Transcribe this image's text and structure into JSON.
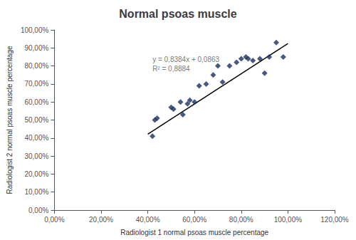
{
  "chart_data": {
    "type": "scatter",
    "title": "Normal psoas muscle",
    "xlabel": "Radiologist 1 normal psoas muscle percentage",
    "ylabel": "Radiologist 2 normal psoas muscle percentage",
    "series": [
      {
        "type": "scatter",
        "color": "#1a3060",
        "marker": "diamond",
        "x": [
          0.42,
          0.43,
          0.44,
          0.5,
          0.51,
          0.54,
          0.55,
          0.57,
          0.58,
          0.6,
          0.62,
          0.65,
          0.68,
          0.7,
          0.72,
          0.75,
          0.78,
          0.8,
          0.82,
          0.83,
          0.85,
          0.88,
          0.9,
          0.92,
          0.95,
          0.98
        ],
        "values": [
          0.41,
          0.5,
          0.51,
          0.57,
          0.56,
          0.6,
          0.53,
          0.59,
          0.61,
          0.6,
          0.69,
          0.7,
          0.75,
          0.8,
          0.71,
          0.8,
          0.82,
          0.84,
          0.85,
          0.84,
          0.83,
          0.84,
          0.76,
          0.85,
          0.93,
          0.85
        ]
      },
      {
        "type": "line",
        "color": "#000000",
        "x": [
          0.4,
          1.0
        ],
        "values": [
          0.42166,
          0.9247
        ]
      }
    ],
    "annotations": [
      {
        "text": "y = 0,8384x + 0,0863\nR² = 0,8884",
        "x": 0.42,
        "y": 0.86
      }
    ],
    "xlim": [
      0.0,
      1.2
    ],
    "ylim": [
      0.0,
      1.0
    ],
    "xticks": [
      {
        "value": 0.0,
        "label": "0,00%"
      },
      {
        "value": 0.2,
        "label": "20,00%"
      },
      {
        "value": 0.4,
        "label": "40,00%"
      },
      {
        "value": 0.6,
        "label": "60,00%"
      },
      {
        "value": 0.8,
        "label": "80,00%"
      },
      {
        "value": 1.0,
        "label": "100,00%"
      },
      {
        "value": 1.2,
        "label": "120,00%"
      }
    ],
    "yticks": [
      {
        "value": 0.0,
        "label": "0,00%"
      },
      {
        "value": 0.1,
        "label": "10,00%"
      },
      {
        "value": 0.2,
        "label": "20,00%"
      },
      {
        "value": 0.3,
        "label": "30,00%"
      },
      {
        "value": 0.4,
        "label": "40,00%"
      },
      {
        "value": 0.5,
        "label": "50,00%"
      },
      {
        "value": 0.6,
        "label": "60,00%"
      },
      {
        "value": 0.7,
        "label": "70,00%"
      },
      {
        "value": 0.8,
        "label": "80,00%"
      },
      {
        "value": 0.9,
        "label": "90,00%"
      },
      {
        "value": 1.0,
        "label": "100,00%"
      }
    ],
    "grid": false
  }
}
